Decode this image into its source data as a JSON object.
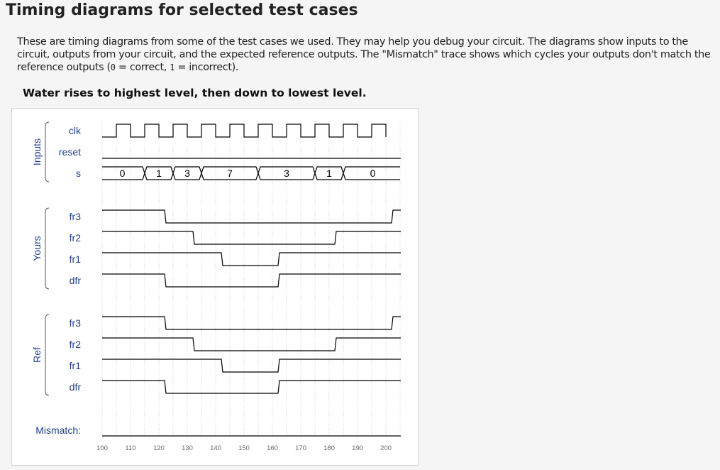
{
  "heading": "Timing diagrams for selected test cases",
  "intro": {
    "part1": "These are timing diagrams from some of the test cases we used. They may help you debug your circuit. The diagrams show inputs to the circuit, outputs from your circuit, and the expected reference outputs. The \"Mismatch\" trace shows which cycles your outputs don't match the reference outputs (",
    "zero": "0",
    "part2": " = correct, ",
    "one": "1",
    "part3": " = incorrect)."
  },
  "case_title": "Water rises to highest level, then down to lowest level.",
  "groups": [
    {
      "name": "Inputs",
      "signals": [
        "clk",
        "reset",
        "s"
      ]
    },
    {
      "name": "Yours",
      "signals": [
        "fr3",
        "fr2",
        "fr1",
        "dfr"
      ]
    },
    {
      "name": "Ref",
      "signals": [
        "fr3",
        "fr2",
        "fr1",
        "dfr"
      ]
    }
  ],
  "mismatch_label": "Mismatch:",
  "time_axis": {
    "ticks": [
      "100",
      "110",
      "120",
      "130",
      "140",
      "150",
      "160",
      "170",
      "180",
      "190",
      "200"
    ]
  },
  "chart_data": {
    "type": "timing",
    "time_range": [
      100,
      205
    ],
    "signals": {
      "clk": {
        "kind": "clock",
        "first_rise": 105,
        "period": 10
      },
      "reset": {
        "kind": "bit",
        "initial": 0,
        "changes": []
      },
      "s": {
        "kind": "bus",
        "segments": [
          {
            "from": 100,
            "to": 115,
            "value": "0"
          },
          {
            "from": 115,
            "to": 125,
            "value": "1"
          },
          {
            "from": 125,
            "to": 135,
            "value": "3"
          },
          {
            "from": 135,
            "to": 155,
            "value": "7"
          },
          {
            "from": 155,
            "to": 175,
            "value": "3"
          },
          {
            "from": 175,
            "to": 185,
            "value": "1"
          },
          {
            "from": 185,
            "to": 205,
            "value": "0"
          }
        ]
      },
      "yours_fr3": {
        "kind": "bit",
        "initial": 1,
        "changes": [
          [
            122,
            0
          ],
          [
            202,
            1
          ]
        ]
      },
      "yours_fr2": {
        "kind": "bit",
        "initial": 1,
        "changes": [
          [
            132,
            0
          ],
          [
            182,
            1
          ]
        ]
      },
      "yours_fr1": {
        "kind": "bit",
        "initial": 1,
        "changes": [
          [
            142,
            0
          ],
          [
            162,
            1
          ]
        ]
      },
      "yours_dfr": {
        "kind": "bit",
        "initial": 1,
        "changes": [
          [
            122,
            0
          ],
          [
            162,
            1
          ]
        ]
      },
      "ref_fr3": {
        "kind": "bit",
        "initial": 1,
        "changes": [
          [
            122,
            0
          ],
          [
            202,
            1
          ]
        ]
      },
      "ref_fr2": {
        "kind": "bit",
        "initial": 1,
        "changes": [
          [
            132,
            0
          ],
          [
            182,
            1
          ]
        ]
      },
      "ref_fr1": {
        "kind": "bit",
        "initial": 1,
        "changes": [
          [
            142,
            0
          ],
          [
            162,
            1
          ]
        ]
      },
      "ref_dfr": {
        "kind": "bit",
        "initial": 1,
        "changes": [
          [
            122,
            0
          ],
          [
            162,
            1
          ]
        ]
      },
      "mismatch": {
        "kind": "bit",
        "initial": 0,
        "changes": []
      }
    }
  }
}
